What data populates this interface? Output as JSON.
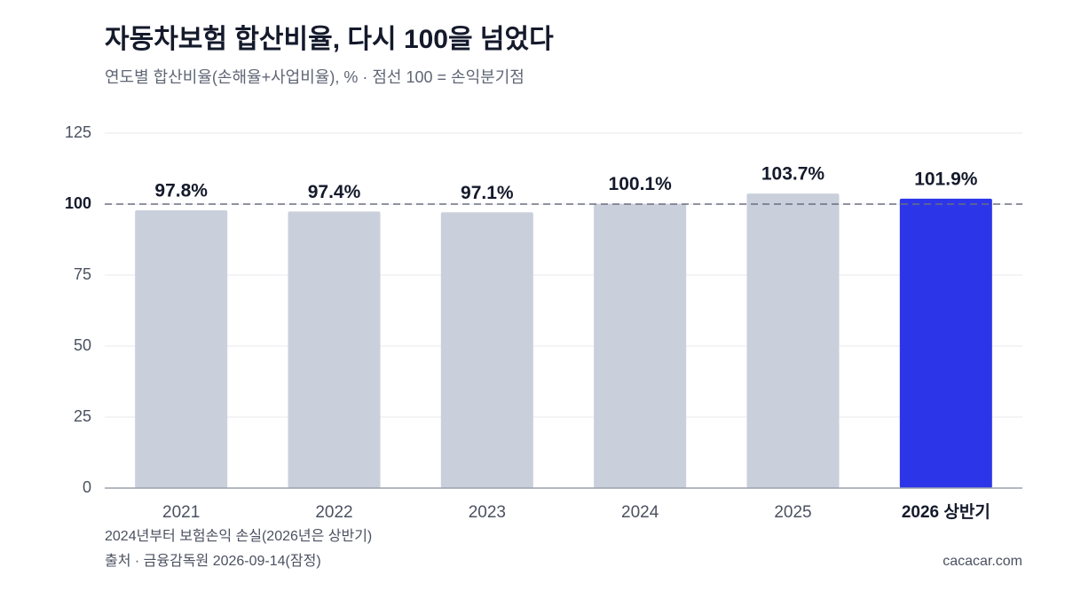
{
  "chart_data": {
    "type": "bar",
    "title": "자동차보험 합산비율, 다시 100을 넘었다",
    "subtitle": "연도별 합산비율(손해율+사업비율), % · 점선 100 = 손익분기점",
    "categories": [
      "2021",
      "2022",
      "2023",
      "2024",
      "2025",
      "2026 상반기"
    ],
    "values": [
      97.8,
      97.4,
      97.1,
      100.1,
      103.7,
      101.9
    ],
    "value_labels": [
      "97.8%",
      "97.4%",
      "97.1%",
      "100.1%",
      "103.7%",
      "101.9%"
    ],
    "colors": [
      "#c9cfdb",
      "#c9cfdb",
      "#c9cfdb",
      "#c9cfdb",
      "#c9cfdb",
      "#2c36e8"
    ],
    "ylim": [
      0,
      125
    ],
    "yticks": [
      0,
      25,
      50,
      75,
      100,
      125
    ],
    "grid": true,
    "reference_line": 100,
    "notes": [
      "2024년부터 보험손익 손실(2026년은 상반기)",
      "출처 · 금융감독원 2026-09-14(잠정)"
    ],
    "credit": "cacacar.com"
  }
}
